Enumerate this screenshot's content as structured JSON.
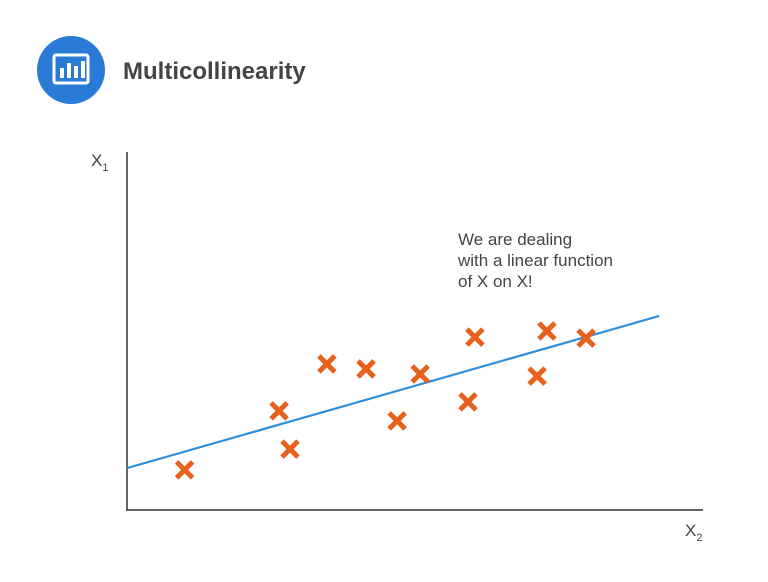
{
  "chart_data": {
    "type": "scatter",
    "title": "Multicollinearity",
    "x_label": {
      "text": "X",
      "subscript": "2"
    },
    "y_label": {
      "text": "X",
      "subscript": "1"
    },
    "annotation": [
      "We are dealing",
      "with a linear function",
      "of X on X!"
    ],
    "x": [
      1.0,
      2.64,
      2.83,
      3.47,
      4.15,
      4.69,
      5.09,
      5.92,
      6.04,
      7.12,
      7.29,
      7.97
    ],
    "values": [
      1.12,
      2.77,
      1.7,
      4.08,
      3.94,
      2.49,
      3.8,
      3.02,
      4.83,
      3.74,
      5.0,
      4.8
    ],
    "color": "#e8601c",
    "trend_line": {
      "x": [
        0,
        9.24
      ],
      "y": [
        1.17,
        5.42
      ],
      "color": "#2e8fdc"
    },
    "xlim": [
      0,
      10
    ],
    "ylim": [
      0,
      10
    ]
  }
}
